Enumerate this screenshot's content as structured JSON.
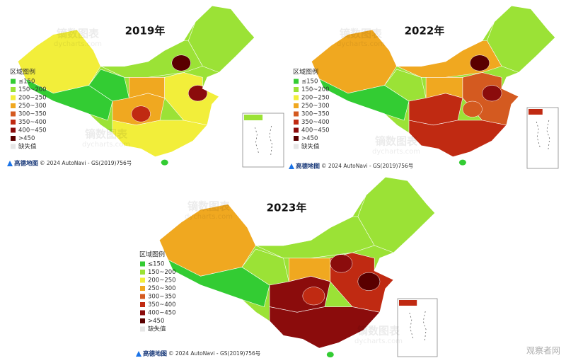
{
  "maps": [
    {
      "title": "2019年",
      "attribution": {
        "logo": "高德地图",
        "text": "© 2024 AutoNavi - GS(2019)756号"
      }
    },
    {
      "title": "2022年",
      "attribution": {
        "logo": "高德地图",
        "text": "© 2024 AutoNavi - GS(2019)756号"
      }
    },
    {
      "title": "2023年",
      "attribution": {
        "logo": "高德地图",
        "text": "© 2024 AutoNavi - GS(2019)756号"
      }
    }
  ],
  "legend": {
    "title": "区域图例",
    "items": [
      {
        "label": "≤150",
        "color": "#33cc33"
      },
      {
        "label": "150~200",
        "color": "#9be236"
      },
      {
        "label": "200~250",
        "color": "#f2ee3a"
      },
      {
        "label": "250~300",
        "color": "#f0a820"
      },
      {
        "label": "300~350",
        "color": "#d45a20"
      },
      {
        "label": "350~400",
        "color": "#c02a12"
      },
      {
        "label": "400~450",
        "color": "#8b0c0c"
      },
      {
        "label": ">450",
        "color": "#5a0000"
      },
      {
        "label": "缺失值",
        "color": "#e6e6e6"
      }
    ]
  },
  "watermark": {
    "name": "镝数图表",
    "site": "dycharts.com",
    "source": "观察者网"
  }
}
